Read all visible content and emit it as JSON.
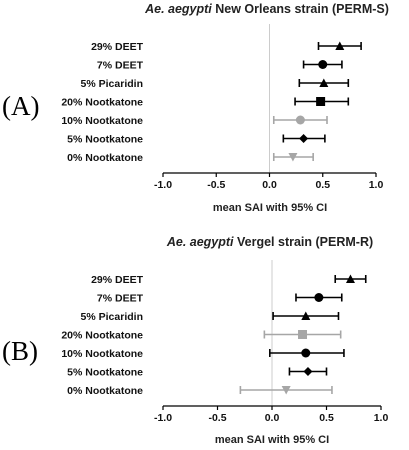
{
  "chart_data": [
    {
      "type": "forest",
      "panel_label": "(A)",
      "title_italic": "Ae. aegypti",
      "title_rest": " New Orleans strain (PERM-S)",
      "xlabel": "mean SAI with 95% CI",
      "xlim": [
        -1.0,
        1.0
      ],
      "xticks": [
        "-1.0",
        "-0.5",
        "0.0",
        "0.5",
        "1.0"
      ],
      "reference_line": 0.0,
      "points": [
        {
          "label": "29% DEET",
          "mean": 0.66,
          "lo": 0.46,
          "hi": 0.86,
          "marker": "triangle-up",
          "color": "#000000"
        },
        {
          "label": "7% DEET",
          "mean": 0.5,
          "lo": 0.32,
          "hi": 0.68,
          "marker": "circle",
          "color": "#000000"
        },
        {
          "label": "5% Picaridin",
          "mean": 0.51,
          "lo": 0.28,
          "hi": 0.74,
          "marker": "triangle-up",
          "color": "#000000"
        },
        {
          "label": "20% Nootkatone",
          "mean": 0.48,
          "lo": 0.24,
          "hi": 0.74,
          "marker": "square",
          "color": "#000000"
        },
        {
          "label": "10% Nootkatone",
          "mean": 0.29,
          "lo": 0.04,
          "hi": 0.54,
          "marker": "circle",
          "color": "#a6a6a6"
        },
        {
          "label": "5% Nootkatone",
          "mean": 0.32,
          "lo": 0.13,
          "hi": 0.52,
          "marker": "diamond",
          "color": "#000000"
        },
        {
          "label": "0% Nootkatone",
          "mean": 0.22,
          "lo": 0.04,
          "hi": 0.41,
          "marker": "triangle-down",
          "color": "#a6a6a6"
        }
      ]
    },
    {
      "type": "forest",
      "panel_label": "(B)",
      "title_italic": "Ae. aegypti",
      "title_rest": " Vergel strain (PERM-R)",
      "xlabel": "mean SAI with 95% CI",
      "xlim": [
        -1.0,
        1.0
      ],
      "xticks": [
        "-1.0",
        "-0.5",
        "0.0",
        "0.5",
        "1.0"
      ],
      "reference_line": 0.0,
      "points": [
        {
          "label": "29% DEET",
          "mean": 0.72,
          "lo": 0.58,
          "hi": 0.86,
          "marker": "triangle-up",
          "color": "#000000"
        },
        {
          "label": "7% DEET",
          "mean": 0.43,
          "lo": 0.22,
          "hi": 0.64,
          "marker": "circle",
          "color": "#000000"
        },
        {
          "label": "5% Picaridin",
          "mean": 0.31,
          "lo": 0.01,
          "hi": 0.61,
          "marker": "triangle-up",
          "color": "#000000"
        },
        {
          "label": "20% Nootkatone",
          "mean": 0.28,
          "lo": -0.07,
          "hi": 0.63,
          "marker": "square",
          "color": "#a6a6a6"
        },
        {
          "label": "10% Nootkatone",
          "mean": 0.31,
          "lo": -0.02,
          "hi": 0.66,
          "marker": "circle",
          "color": "#000000"
        },
        {
          "label": "5% Nootkatone",
          "mean": 0.33,
          "lo": 0.16,
          "hi": 0.5,
          "marker": "diamond",
          "color": "#000000"
        },
        {
          "label": "0% Nootkatone",
          "mean": 0.13,
          "lo": -0.29,
          "hi": 0.55,
          "marker": "triangle-down",
          "color": "#a6a6a6"
        }
      ]
    }
  ]
}
